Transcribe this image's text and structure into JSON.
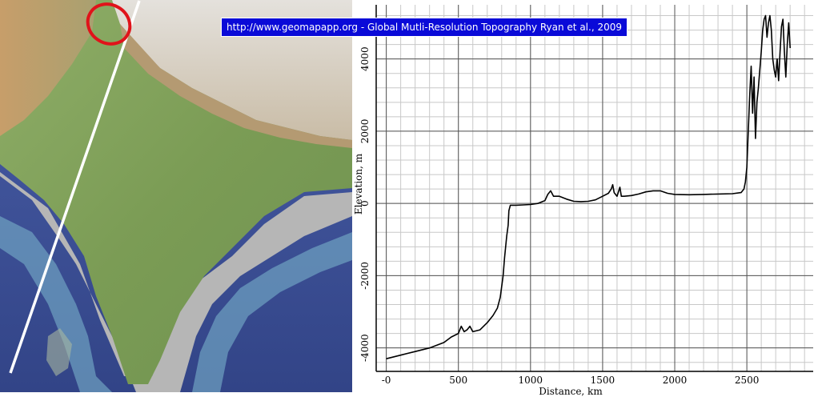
{
  "credit_banner": "http://www.geomapapp.org - Global Mutli-Resolution Topography Ryan et al., 2009",
  "colors": {
    "banner_bg": "#0a0ad8",
    "profile_line": "#000000",
    "transect_line": "#ffffff",
    "highlight_ellipse": "#e0131a",
    "ocean_deep": "#3c4f9a",
    "land_low": "#7ea15a",
    "mountains": "#d8d3cc"
  },
  "map": {
    "transect_icon": "white-transect-line",
    "highlight_icon": "red-ellipse-marker"
  },
  "chart_data": {
    "type": "line",
    "title": "",
    "xlabel": "Distance, km",
    "ylabel": "Elevation, m",
    "xlim": [
      -70,
      2960
    ],
    "ylim": [
      -4650,
      5500
    ],
    "x_ticks": [
      0,
      500,
      1000,
      1500,
      2000,
      2500
    ],
    "x_tick_labels": [
      "-0",
      "500",
      "1000",
      "1500",
      "2000",
      "2500"
    ],
    "y_ticks": [
      -4000,
      -2000,
      0,
      2000,
      4000
    ],
    "y_tick_labels": [
      "-4000",
      "-2000",
      "0",
      "2000",
      "4000"
    ],
    "grid": true,
    "series": [
      {
        "x": [
          0,
          100,
          200,
          300,
          400,
          450,
          500,
          520,
          540,
          560,
          580,
          600,
          650,
          700,
          740,
          770,
          790,
          800,
          810,
          820,
          830,
          835,
          845,
          850,
          860,
          870,
          900,
          950,
          1000,
          1050,
          1100,
          1120,
          1140,
          1160,
          1200,
          1250,
          1300,
          1350,
          1400,
          1450,
          1500,
          1540,
          1560,
          1570,
          1580,
          1600,
          1620,
          1630,
          1650,
          1700,
          1750,
          1800,
          1850,
          1900,
          1950,
          2000,
          2100,
          2200,
          2300,
          2400,
          2460,
          2480,
          2490,
          2500,
          2510,
          2520,
          2530,
          2540,
          2550,
          2560,
          2570,
          2580,
          2590,
          2600,
          2610,
          2620,
          2630,
          2640,
          2650,
          2660,
          2670,
          2680,
          2690,
          2700,
          2710,
          2720,
          2730,
          2740,
          2750,
          2760,
          2770,
          2780,
          2790,
          2800
        ],
        "y": [
          -4300,
          -4200,
          -4100,
          -4000,
          -3850,
          -3700,
          -3600,
          -3400,
          -3550,
          -3500,
          -3400,
          -3550,
          -3500,
          -3300,
          -3100,
          -2900,
          -2600,
          -2300,
          -2000,
          -1500,
          -1100,
          -900,
          -600,
          -200,
          -50,
          -50,
          -50,
          -40,
          -30,
          0,
          80,
          250,
          350,
          200,
          200,
          120,
          60,
          50,
          60,
          100,
          200,
          280,
          400,
          520,
          300,
          200,
          450,
          200,
          200,
          220,
          260,
          320,
          350,
          350,
          280,
          250,
          240,
          250,
          260,
          270,
          300,
          400,
          600,
          1000,
          2000,
          3000,
          3800,
          2500,
          3500,
          1800,
          2800,
          3200,
          3700,
          4200,
          4800,
          5100,
          5200,
          4600,
          5000,
          5200,
          4800,
          4000,
          3700,
          3500,
          4000,
          3400,
          4200,
          4900,
          5100,
          4200,
          3500,
          4400,
          5000,
          4300
        ]
      }
    ]
  }
}
